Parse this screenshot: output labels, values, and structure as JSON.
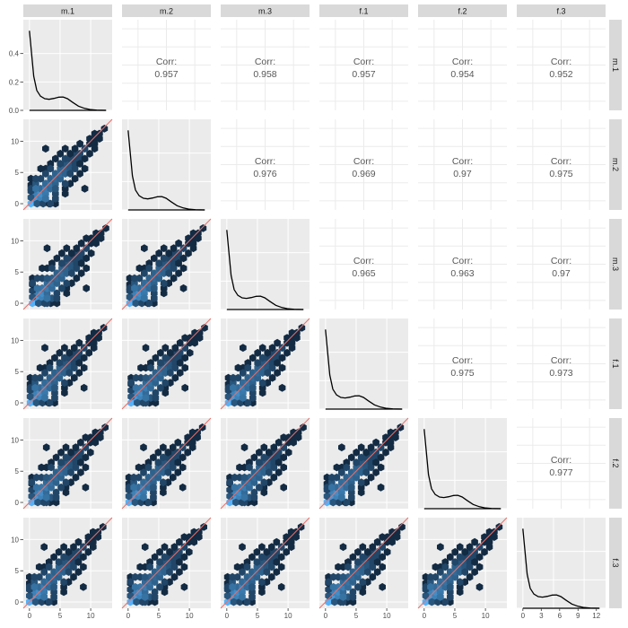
{
  "chart_data": {
    "type": "scatter",
    "subtype": "pairs-matrix",
    "title": "",
    "variables": [
      "m.1",
      "m.2",
      "m.3",
      "f.1",
      "f.2",
      "f.3"
    ],
    "corr_label": "Corr:",
    "correlations": [
      {
        "row": "m.1",
        "col": "m.2",
        "value": "0.957"
      },
      {
        "row": "m.1",
        "col": "m.3",
        "value": "0.958"
      },
      {
        "row": "m.1",
        "col": "f.1",
        "value": "0.957"
      },
      {
        "row": "m.1",
        "col": "f.2",
        "value": "0.954"
      },
      {
        "row": "m.1",
        "col": "f.3",
        "value": "0.952"
      },
      {
        "row": "m.2",
        "col": "m.3",
        "value": "0.976"
      },
      {
        "row": "m.2",
        "col": "f.1",
        "value": "0.969"
      },
      {
        "row": "m.2",
        "col": "f.2",
        "value": "0.97"
      },
      {
        "row": "m.2",
        "col": "f.3",
        "value": "0.975"
      },
      {
        "row": "m.3",
        "col": "f.1",
        "value": "0.965"
      },
      {
        "row": "m.3",
        "col": "f.2",
        "value": "0.963"
      },
      {
        "row": "m.3",
        "col": "f.3",
        "value": "0.97"
      },
      {
        "row": "f.1",
        "col": "f.2",
        "value": "0.975"
      },
      {
        "row": "f.1",
        "col": "f.3",
        "value": "0.973"
      },
      {
        "row": "f.2",
        "col": "f.3",
        "value": "0.977"
      }
    ],
    "density": {
      "x": [
        0,
        0.3,
        0.7,
        1.2,
        1.8,
        2.5,
        3.2,
        4.0,
        4.8,
        5.5,
        6.2,
        7.0,
        8.0,
        9.0,
        10.0,
        11.0,
        12.5
      ],
      "y": [
        0.56,
        0.42,
        0.24,
        0.14,
        0.1,
        0.082,
        0.078,
        0.084,
        0.093,
        0.094,
        0.082,
        0.058,
        0.03,
        0.014,
        0.005,
        0.0015,
        0.0
      ]
    },
    "density_y_ticks": [
      "0.0",
      "0.2",
      "0.4"
    ],
    "density_ylim": [
      0,
      0.6
    ],
    "scatter_ticks": [
      "0",
      "5",
      "10"
    ],
    "last_x_ticks": [
      "0",
      "3",
      "6",
      "9",
      "12"
    ],
    "x_range": [
      -1,
      13.5
    ],
    "y_range": [
      -1,
      13.5
    ],
    "reference_line": "y = x",
    "hex_bins": [
      [
        0,
        0,
        30
      ],
      [
        0.8,
        0.8,
        16
      ],
      [
        1.6,
        0.8,
        9
      ],
      [
        0.8,
        1.6,
        9
      ],
      [
        1.6,
        1.6,
        12
      ],
      [
        2.4,
        1.6,
        5
      ],
      [
        1.6,
        2.4,
        7
      ],
      [
        2.4,
        2.4,
        8
      ],
      [
        0,
        1,
        3
      ],
      [
        1,
        0,
        3
      ],
      [
        0,
        2,
        2
      ],
      [
        2,
        0,
        2
      ],
      [
        0,
        3,
        1
      ],
      [
        3,
        0,
        1
      ],
      [
        0,
        4,
        1
      ],
      [
        4,
        0,
        1
      ],
      [
        3.2,
        2.4,
        5
      ],
      [
        2.4,
        3.2,
        5
      ],
      [
        3.2,
        3.2,
        6
      ],
      [
        4,
        3.2,
        4
      ],
      [
        3.2,
        4,
        4
      ],
      [
        4,
        4,
        5
      ],
      [
        4.8,
        4,
        4
      ],
      [
        4,
        4.8,
        4
      ],
      [
        4.8,
        4.8,
        5
      ],
      [
        5.6,
        4.8,
        4
      ],
      [
        4.8,
        5.6,
        4
      ],
      [
        5.6,
        5.6,
        4
      ],
      [
        6.4,
        5.6,
        3
      ],
      [
        5.6,
        6.4,
        3
      ],
      [
        6.4,
        6.4,
        3
      ],
      [
        7.2,
        6.4,
        2
      ],
      [
        6.4,
        7.2,
        2
      ],
      [
        7.2,
        7.2,
        2
      ],
      [
        8,
        7.2,
        2
      ],
      [
        7.2,
        8,
        2
      ],
      [
        8,
        8,
        2
      ],
      [
        8.8,
        8.8,
        2
      ],
      [
        9.6,
        9.6,
        1
      ],
      [
        10.4,
        10.4,
        1
      ],
      [
        11.2,
        11.2,
        1
      ],
      [
        12,
        12,
        1
      ],
      [
        1.6,
        4,
        2
      ],
      [
        2.4,
        5.6,
        1
      ],
      [
        3.2,
        6.4,
        1
      ],
      [
        4,
        7.2,
        1
      ],
      [
        4.8,
        8,
        1
      ],
      [
        5.6,
        8.8,
        1
      ],
      [
        4,
        1.6,
        2
      ],
      [
        5.6,
        2.4,
        1
      ],
      [
        6.4,
        3.2,
        1
      ],
      [
        7.2,
        4,
        1
      ],
      [
        8,
        4.8,
        1
      ],
      [
        8.8,
        5.6,
        1
      ],
      [
        2.4,
        0,
        2
      ],
      [
        3.2,
        0.8,
        3
      ],
      [
        4,
        0.8,
        2
      ],
      [
        0,
        3.2,
        2
      ],
      [
        0.8,
        4,
        2
      ],
      [
        0.8,
        2.4,
        6
      ],
      [
        2.4,
        0.8,
        6
      ],
      [
        4.8,
        2.4,
        2
      ],
      [
        2.4,
        4,
        3
      ],
      [
        3.2,
        5.6,
        2
      ],
      [
        5.6,
        3.2,
        2
      ],
      [
        6.4,
        4.8,
        2
      ],
      [
        4.8,
        6.4,
        2
      ],
      [
        7.2,
        5.6,
        2
      ],
      [
        5.6,
        7.2,
        2
      ],
      [
        8,
        6.4,
        1
      ],
      [
        6.4,
        8,
        1
      ],
      [
        8.8,
        7.2,
        1
      ],
      [
        7.2,
        8.8,
        1
      ],
      [
        9.6,
        8,
        1
      ],
      [
        8,
        9.6,
        1
      ],
      [
        10.4,
        9.6,
        1
      ],
      [
        9.6,
        10.4,
        1
      ],
      [
        8.8,
        10.4,
        1
      ],
      [
        10.4,
        11.2,
        1
      ],
      [
        11.2,
        10.4,
        1
      ],
      [
        8.8,
        2.4,
        1
      ],
      [
        2.4,
        8.8,
        1
      ],
      [
        1.6,
        5.6,
        1
      ],
      [
        5.6,
        1.6,
        1
      ]
    ],
    "colors": {
      "panel_background": "#ebebeb",
      "strip_background": "#d9d9d9",
      "grid": "#ffffff",
      "density_line": "#000000",
      "reference_line": "#e8706a",
      "hex_low": "#132b43",
      "hex_high": "#56b1f7"
    }
  }
}
